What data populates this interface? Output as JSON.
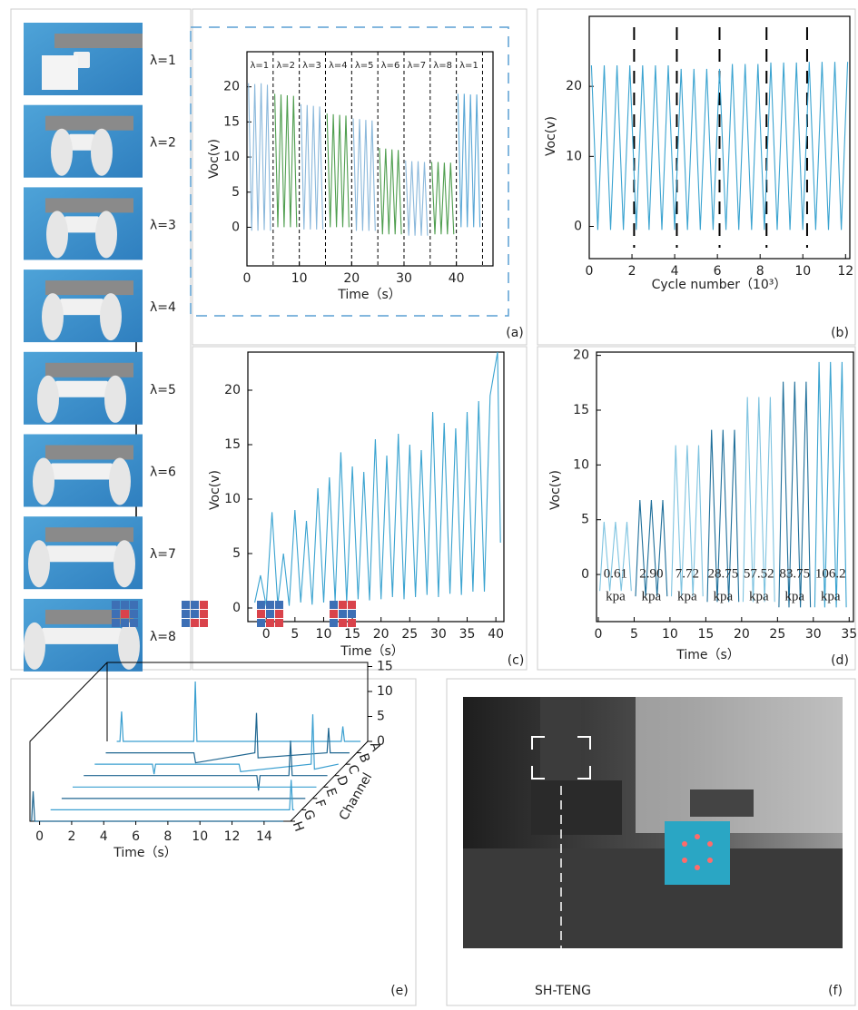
{
  "chart_data": [
    {
      "type": "line",
      "panel": "(a)",
      "xlabel": "Time（s）",
      "ylabel": "Voc(v)",
      "xlim": [
        0,
        47
      ],
      "ylim": [
        -5.5,
        25
      ],
      "xticks": [
        0,
        10,
        20,
        30,
        40
      ],
      "yticks": [
        0,
        5,
        10,
        15,
        20
      ],
      "dividers": [
        5,
        10,
        15,
        20,
        25,
        30,
        35,
        40,
        45
      ],
      "segment_labels": [
        "λ=1",
        "λ=2",
        "λ=3",
        "λ=4",
        "λ=5",
        "λ=6",
        "λ=7",
        "λ=8",
        "λ=1"
      ],
      "series": [
        {
          "color": "#8ab8db",
          "x": [
            0.3,
            0.9,
            1.5,
            2.1,
            2.7,
            3.3,
            3.9,
            4.5
          ],
          "values": [
            20.5,
            -0.5,
            20.4,
            -0.5,
            20.5,
            -0.4,
            20.3,
            -0.5
          ]
        },
        {
          "color": "#4f9e4f",
          "x": [
            5.3,
            5.9,
            6.5,
            7.1,
            7.7,
            8.3,
            8.9,
            9.5
          ],
          "values": [
            19,
            0,
            18.9,
            0,
            18.8,
            0,
            18.7,
            0
          ]
        },
        {
          "color": "#8ab8db",
          "x": [
            10.3,
            10.9,
            11.5,
            12.1,
            12.7,
            13.3,
            13.9,
            14.5
          ],
          "values": [
            17.5,
            -0.3,
            17.4,
            -0.3,
            17.3,
            -0.3,
            17.2,
            -0.3
          ]
        },
        {
          "color": "#4f9e4f",
          "x": [
            15.3,
            15.9,
            16.5,
            17.1,
            17.7,
            18.3,
            18.9,
            19.5
          ],
          "values": [
            16.2,
            0,
            16.1,
            0,
            16,
            0,
            15.9,
            0
          ]
        },
        {
          "color": "#8ab8db",
          "x": [
            20.3,
            20.9,
            21.5,
            22.1,
            22.7,
            23.3,
            23.9,
            24.5
          ],
          "values": [
            15.5,
            -0.5,
            15.4,
            -0.5,
            15.3,
            -0.5,
            15.2,
            -0.5
          ]
        },
        {
          "color": "#4f9e4f",
          "x": [
            25.3,
            25.9,
            26.5,
            27.1,
            27.7,
            28.3,
            28.9,
            29.5
          ],
          "values": [
            11.3,
            -1,
            11.2,
            -1,
            11.1,
            -1,
            11,
            -1
          ]
        },
        {
          "color": "#8ab8db",
          "x": [
            30.3,
            30.9,
            31.5,
            32.1,
            32.7,
            33.3,
            33.9,
            34.5
          ],
          "values": [
            9.5,
            -1.2,
            9.4,
            -1.2,
            9.4,
            -1.2,
            9.3,
            -1.2
          ]
        },
        {
          "color": "#4f9e4f",
          "x": [
            35.3,
            35.9,
            36.5,
            37.1,
            37.7,
            38.3,
            38.9,
            39.5
          ],
          "values": [
            9.3,
            -1,
            9.3,
            -1,
            9.2,
            -1,
            9.2,
            -1
          ]
        },
        {
          "color": "#5aa7d6",
          "x": [
            40.3,
            40.9,
            41.5,
            42.1,
            42.7,
            43.3,
            43.9,
            44.5
          ],
          "values": [
            19,
            0,
            19,
            0,
            18.9,
            0,
            18.9,
            0
          ]
        }
      ]
    },
    {
      "type": "line",
      "panel": "(b)",
      "xlabel": "Cycle number（10³）",
      "ylabel": "Voc(v)",
      "xlim": [
        0,
        12.2
      ],
      "ylim": [
        -4.6,
        30
      ],
      "xticks": [
        0,
        2,
        4,
        6,
        8,
        10,
        12
      ],
      "yticks": [
        0,
        10,
        20
      ],
      "dividers": [
        2.1,
        4.1,
        6.1,
        8.3,
        10.2
      ],
      "series": [
        {
          "color": "#3aa3d0",
          "x": [
            0.1,
            0.4,
            0.7,
            1.0,
            1.3,
            1.6,
            1.9,
            2.2,
            2.5,
            2.8,
            3.1,
            3.4,
            3.7,
            4.0,
            4.3,
            4.6,
            4.9,
            5.2,
            5.5,
            5.8,
            6.1,
            6.4,
            6.7,
            7.0,
            7.3,
            7.6,
            7.9,
            8.2,
            8.5,
            8.8,
            9.1,
            9.4,
            9.7,
            10.0,
            10.3,
            10.6,
            10.9,
            11.2,
            11.5,
            11.8,
            12.1
          ],
          "values": [
            23,
            -0.5,
            23,
            -0.5,
            23,
            -0.5,
            23,
            -0.5,
            23,
            -0.5,
            23,
            -0.5,
            23,
            -0.5,
            22.5,
            -0.5,
            22.5,
            -0.5,
            22.5,
            -0.5,
            22.5,
            -0.5,
            23.2,
            -0.5,
            23.2,
            -0.5,
            23.2,
            -0.5,
            23.4,
            -0.5,
            23.4,
            -0.5,
            23.4,
            -0.5,
            23.5,
            -0.5,
            23.5,
            -0.5,
            23.5,
            -0.5,
            23.5
          ]
        }
      ]
    },
    {
      "type": "line",
      "panel": "(c)",
      "xlabel": "Time（s）",
      "ylabel": "Voc(v)",
      "xlim": [
        -3.2,
        41.4
      ],
      "ylim": [
        -1.25,
        23.5
      ],
      "xticks": [
        0,
        5,
        10,
        15,
        20,
        25,
        30,
        35,
        40
      ],
      "yticks": [
        0,
        5,
        10,
        15,
        20
      ],
      "series": [
        {
          "color": "#3aa3d0",
          "x": [
            -2,
            -1,
            0,
            1,
            2,
            3,
            4,
            5,
            6,
            7,
            8,
            9,
            10,
            11,
            12,
            13,
            14,
            15,
            16,
            17,
            18,
            19,
            20,
            21,
            22,
            23,
            24,
            25,
            26,
            27,
            28,
            29,
            30,
            31,
            32,
            33,
            34,
            35,
            36,
            37,
            38,
            39,
            40.3,
            40.8
          ],
          "values": [
            0.5,
            3,
            0.2,
            8.8,
            0.3,
            5,
            0.2,
            9,
            0.5,
            8,
            0.3,
            11,
            0.5,
            12,
            0.6,
            14.3,
            0.5,
            13,
            0.8,
            12.5,
            0.7,
            15.5,
            0.8,
            14,
            1,
            16,
            0.8,
            15,
            1,
            14.5,
            1.2,
            18,
            1,
            17,
            1.3,
            16.5,
            1.2,
            18,
            1.5,
            19,
            1.5,
            19.5,
            23.5,
            6
          ]
        }
      ]
    },
    {
      "type": "line",
      "panel": "(d)",
      "xlabel": "Time（s）",
      "ylabel": "Voc(v)",
      "xlim": [
        -0.25,
        35.6
      ],
      "ylim": [
        -4.3,
        20.3
      ],
      "xticks": [
        0,
        5,
        10,
        15,
        20,
        25,
        30,
        35
      ],
      "yticks": [
        0,
        5,
        10,
        15,
        20
      ],
      "pressure_labels": [
        [
          "0.61",
          "kpa"
        ],
        [
          "2.90",
          "kpa"
        ],
        [
          "7.72",
          "kpa"
        ],
        [
          "28.75",
          "kpa"
        ],
        [
          "57.52",
          "kpa"
        ],
        [
          "83.75",
          "kpa"
        ],
        [
          "106.2",
          "kpa"
        ]
      ],
      "series": [
        {
          "color": "#7ec3e0",
          "x": [
            0.2,
            0.8,
            1.6,
            2.4,
            3.2,
            4.0,
            4.6
          ],
          "values": [
            -1.5,
            4.8,
            -1.5,
            4.8,
            -1.5,
            4.8,
            -1.5
          ]
        },
        {
          "color": "#1f6f9a",
          "x": [
            5.2,
            5.8,
            6.6,
            7.4,
            8.2,
            9.0,
            9.6
          ],
          "values": [
            -2,
            6.8,
            -2,
            6.8,
            -2,
            6.8,
            -2
          ]
        },
        {
          "color": "#7ec3e0",
          "x": [
            10.2,
            10.8,
            11.6,
            12.4,
            13.2,
            14.0,
            14.6
          ],
          "values": [
            -2,
            11.8,
            -2,
            11.8,
            -2,
            11.8,
            -2
          ]
        },
        {
          "color": "#1f6f9a",
          "x": [
            15.2,
            15.8,
            16.6,
            17.4,
            18.2,
            19.0,
            19.6
          ],
          "values": [
            -2.5,
            13.2,
            -2.5,
            13.2,
            -2.5,
            13.2,
            -2.5
          ]
        },
        {
          "color": "#7ec3e0",
          "x": [
            20.2,
            20.8,
            21.6,
            22.4,
            23.2,
            24.0,
            24.6
          ],
          "values": [
            -2.5,
            16.2,
            -2.5,
            16.2,
            -2.5,
            16.2,
            -2.5
          ]
        },
        {
          "color": "#1f6f9a",
          "x": [
            25.2,
            25.8,
            26.6,
            27.4,
            28.2,
            29.0,
            29.6
          ],
          "values": [
            -3,
            17.6,
            -3,
            17.6,
            -3,
            17.6,
            -3
          ]
        },
        {
          "color": "#3aa3d0",
          "x": [
            30.2,
            30.8,
            31.6,
            32.4,
            33.2,
            34.0,
            34.6
          ],
          "values": [
            -3,
            19.4,
            -3,
            19.4,
            -3,
            19.4,
            -3
          ]
        }
      ]
    },
    {
      "type": "waterfall",
      "panel": "(e)",
      "xlabel": "Time（s）",
      "channel_label": "Channel",
      "xlim": [
        -0.6,
        15.65
      ],
      "zlim": [
        0,
        15
      ],
      "xticks": [
        0,
        2,
        4,
        6,
        8,
        10,
        12,
        14
      ],
      "zticks": [
        0,
        5,
        10,
        15
      ],
      "series": [
        {
          "name": "A",
          "color": "#3a9fd0",
          "x": [
            0,
            0.2,
            0.3,
            0.4,
            4.8,
            4.9,
            5.0,
            14.0,
            14.1,
            14.2,
            15.2
          ],
          "values": [
            0,
            0,
            6,
            0,
            0,
            12,
            0,
            0,
            3,
            0,
            0
          ]
        },
        {
          "name": "B",
          "color": "#1f6690",
          "x": [
            0,
            5.5,
            5.6,
            9.3,
            9.4,
            9.5,
            13.8,
            13.9,
            14.0,
            15.2
          ],
          "values": [
            0,
            0,
            -2,
            0,
            8,
            -1,
            0,
            5,
            0,
            0
          ]
        },
        {
          "name": "C",
          "color": "#3a9fd0",
          "x": [
            0,
            3.6,
            3.7,
            3.8,
            9.0,
            9.1,
            13.5,
            13.6,
            13.7,
            15.2
          ],
          "values": [
            0,
            0,
            -2,
            0,
            0,
            -1.5,
            0,
            10,
            -1,
            0
          ]
        },
        {
          "name": "D",
          "color": "#1f6690",
          "x": [
            0,
            10.8,
            10.9,
            11.0,
            12.8,
            12.9,
            13.0,
            15.2
          ],
          "values": [
            0,
            0,
            -3,
            0,
            0,
            7,
            0,
            0
          ]
        },
        {
          "name": "E",
          "color": "#3a9fd0",
          "x": [
            0,
            15.2
          ],
          "values": [
            0,
            0
          ]
        },
        {
          "name": "F",
          "color": "#1f6690",
          "x": [
            0,
            15.2
          ],
          "values": [
            0,
            0
          ]
        },
        {
          "name": "G",
          "color": "#3a9fd0",
          "x": [
            0,
            14.9,
            15.0,
            15.1,
            15.2
          ],
          "values": [
            0,
            0,
            6,
            0,
            0
          ]
        },
        {
          "name": "H",
          "color": "#1f6690",
          "x": [
            -0.5,
            -0.4,
            -0.3,
            15.2
          ],
          "values": [
            0,
            6,
            0,
            0
          ]
        }
      ]
    }
  ],
  "photos": {
    "labels": [
      "λ=1",
      "λ=2",
      "λ=3",
      "λ=4",
      "λ=5",
      "λ=6",
      "λ=7",
      "λ=8"
    ]
  },
  "photo_f": {
    "caption": "SH-TENG",
    "panel": "(f)"
  }
}
